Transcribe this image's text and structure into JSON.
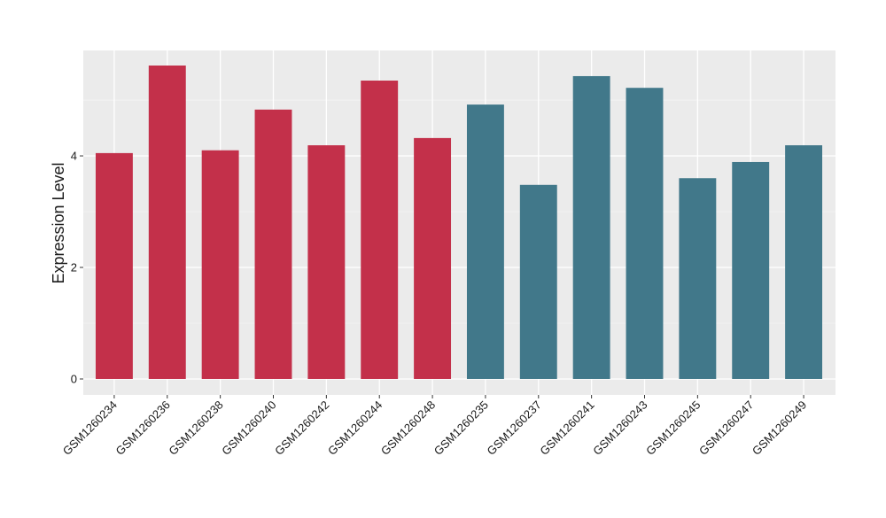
{
  "chart_data": {
    "type": "bar",
    "y_label": "Expression Level",
    "categories": [
      "GSM1260234",
      "GSM1260236",
      "GSM1260238",
      "GSM1260240",
      "GSM1260242",
      "GSM1260244",
      "GSM1260248",
      "GSM1260235",
      "GSM1260237",
      "GSM1260241",
      "GSM1260243",
      "GSM1260245",
      "GSM1260247",
      "GSM1260249"
    ],
    "values": [
      4.05,
      5.62,
      4.1,
      4.83,
      4.19,
      5.35,
      4.32,
      4.92,
      3.48,
      5.43,
      5.22,
      3.6,
      3.89,
      4.19
    ],
    "colors": [
      "#c3304a",
      "#c3304a",
      "#c3304a",
      "#c3304a",
      "#c3304a",
      "#c3304a",
      "#c3304a",
      "#41788a",
      "#41788a",
      "#41788a",
      "#41788a",
      "#41788a",
      "#41788a",
      "#41788a"
    ],
    "ylim": [
      -0.286,
      5.89
    ],
    "yticks": [
      0,
      2,
      4
    ],
    "minor_yticks": [
      1,
      3,
      5
    ],
    "grid": true
  }
}
